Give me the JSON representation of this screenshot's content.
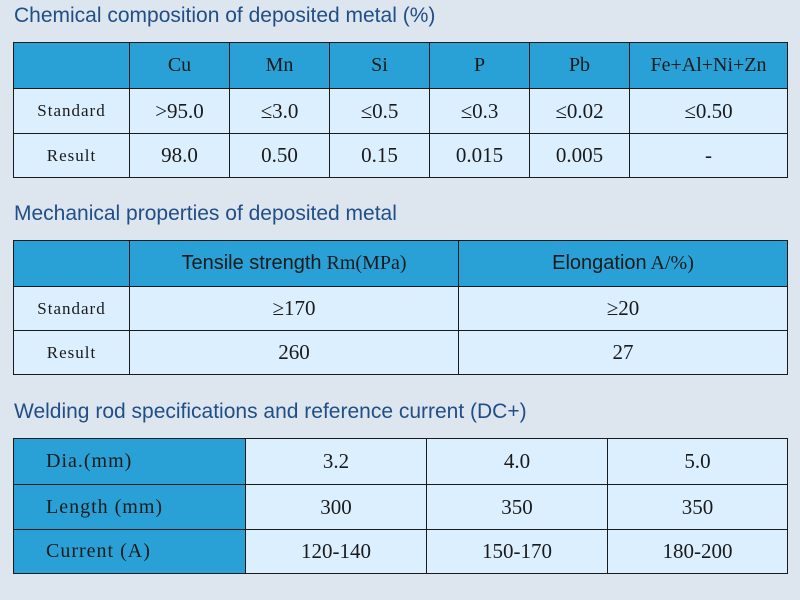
{
  "chemical": {
    "title": "Chemical composition of deposited metal (%)",
    "columns": [
      "Cu",
      "Mn",
      "Si",
      "P",
      "Pb",
      "Fe+Al+Ni+Zn"
    ],
    "rows": [
      {
        "label": "Standard",
        "values": [
          ">95.0",
          "≤3.0",
          "≤0.5",
          "≤0.3",
          "≤0.02",
          "≤0.50"
        ]
      },
      {
        "label": "Result",
        "values": [
          "98.0",
          "0.50",
          "0.15",
          "0.015",
          "0.005",
          "-"
        ]
      }
    ]
  },
  "mechanical": {
    "title": "Mechanical properties of deposited metal",
    "columns": [
      {
        "label": "Tensile strength",
        "unit": "Rm(MPa)"
      },
      {
        "label": "Elongation",
        "unit": "A/%)"
      }
    ],
    "rows": [
      {
        "label": "Standard",
        "values": [
          "≥170",
          "≥20"
        ]
      },
      {
        "label": "Result",
        "values": [
          "260",
          "27"
        ]
      }
    ]
  },
  "specs": {
    "title": "Welding rod specifications and reference current (DC+)",
    "rows": [
      {
        "label": "Dia.(mm)",
        "values": [
          "3.2",
          "4.0",
          "5.0"
        ]
      },
      {
        "label": "Length (mm)",
        "values": [
          "300",
          "350",
          "350"
        ]
      },
      {
        "label": "Current (A)",
        "values": [
          "120-140",
          "150-170",
          "180-200"
        ]
      }
    ]
  }
}
